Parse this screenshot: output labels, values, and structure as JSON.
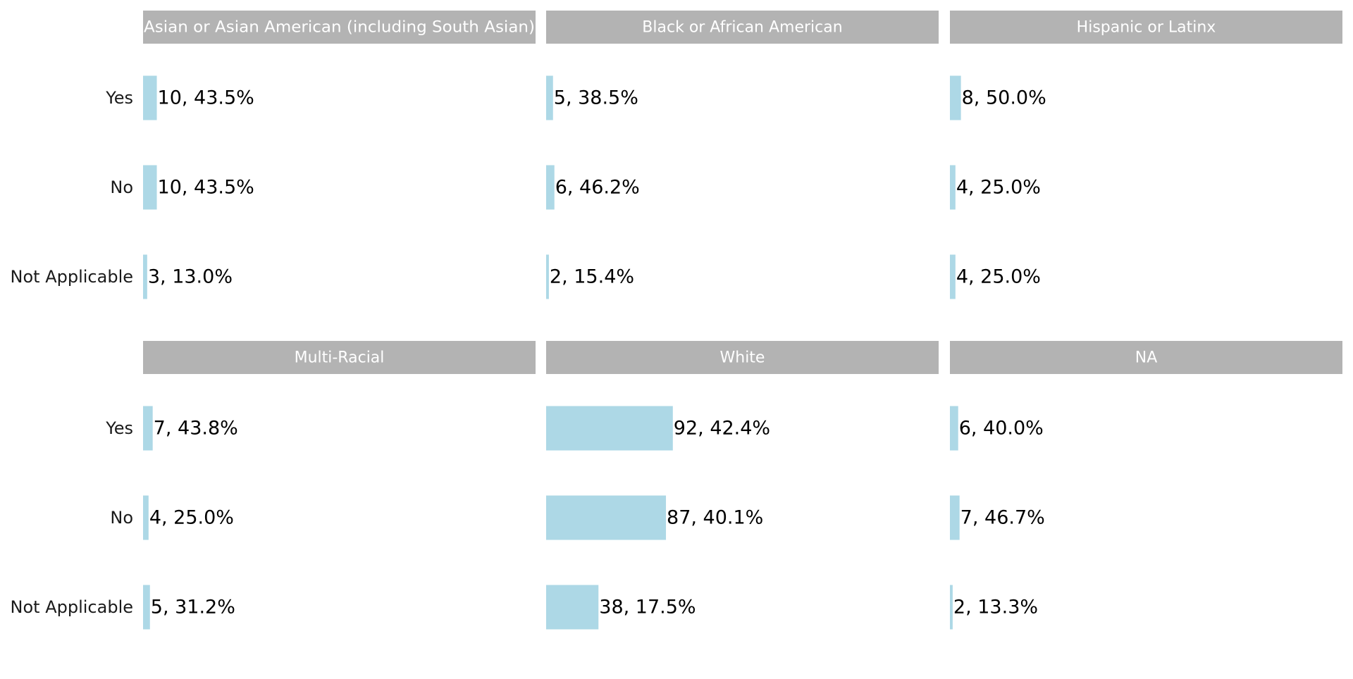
{
  "chart_data": {
    "type": "bar",
    "orientation": "horizontal",
    "layout": "facet-grid-2x3",
    "categories": [
      "Yes",
      "No",
      "Not Applicable"
    ],
    "xlim": [
      0,
      285
    ],
    "grid": false,
    "colors": {
      "bar": "#add8e6",
      "strip": "#b3b3b3",
      "strip_text": "#ffffff"
    },
    "facets": [
      {
        "name": "Asian or Asian American (including South Asian)",
        "values": [
          10,
          10,
          3
        ],
        "labels": [
          "10, 43.5%",
          "10, 43.5%",
          "3, 13.0%"
        ]
      },
      {
        "name": "Black or African American",
        "values": [
          5,
          6,
          2
        ],
        "labels": [
          "5, 38.5%",
          "6, 46.2%",
          "2, 15.4%"
        ]
      },
      {
        "name": "Hispanic or Latinx",
        "values": [
          8,
          4,
          4
        ],
        "labels": [
          "8, 50.0%",
          "4, 25.0%",
          "4, 25.0%"
        ]
      },
      {
        "name": "Multi-Racial",
        "values": [
          7,
          4,
          5
        ],
        "labels": [
          "7, 43.8%",
          "4, 25.0%",
          "5, 31.2%"
        ]
      },
      {
        "name": "White",
        "values": [
          92,
          87,
          38
        ],
        "labels": [
          "92, 42.4%",
          "87, 40.1%",
          "38, 17.5%"
        ]
      },
      {
        "name": "NA",
        "values": [
          6,
          7,
          2
        ],
        "labels": [
          "6, 40.0%",
          "7, 46.7%",
          "2, 13.3%"
        ]
      }
    ]
  }
}
